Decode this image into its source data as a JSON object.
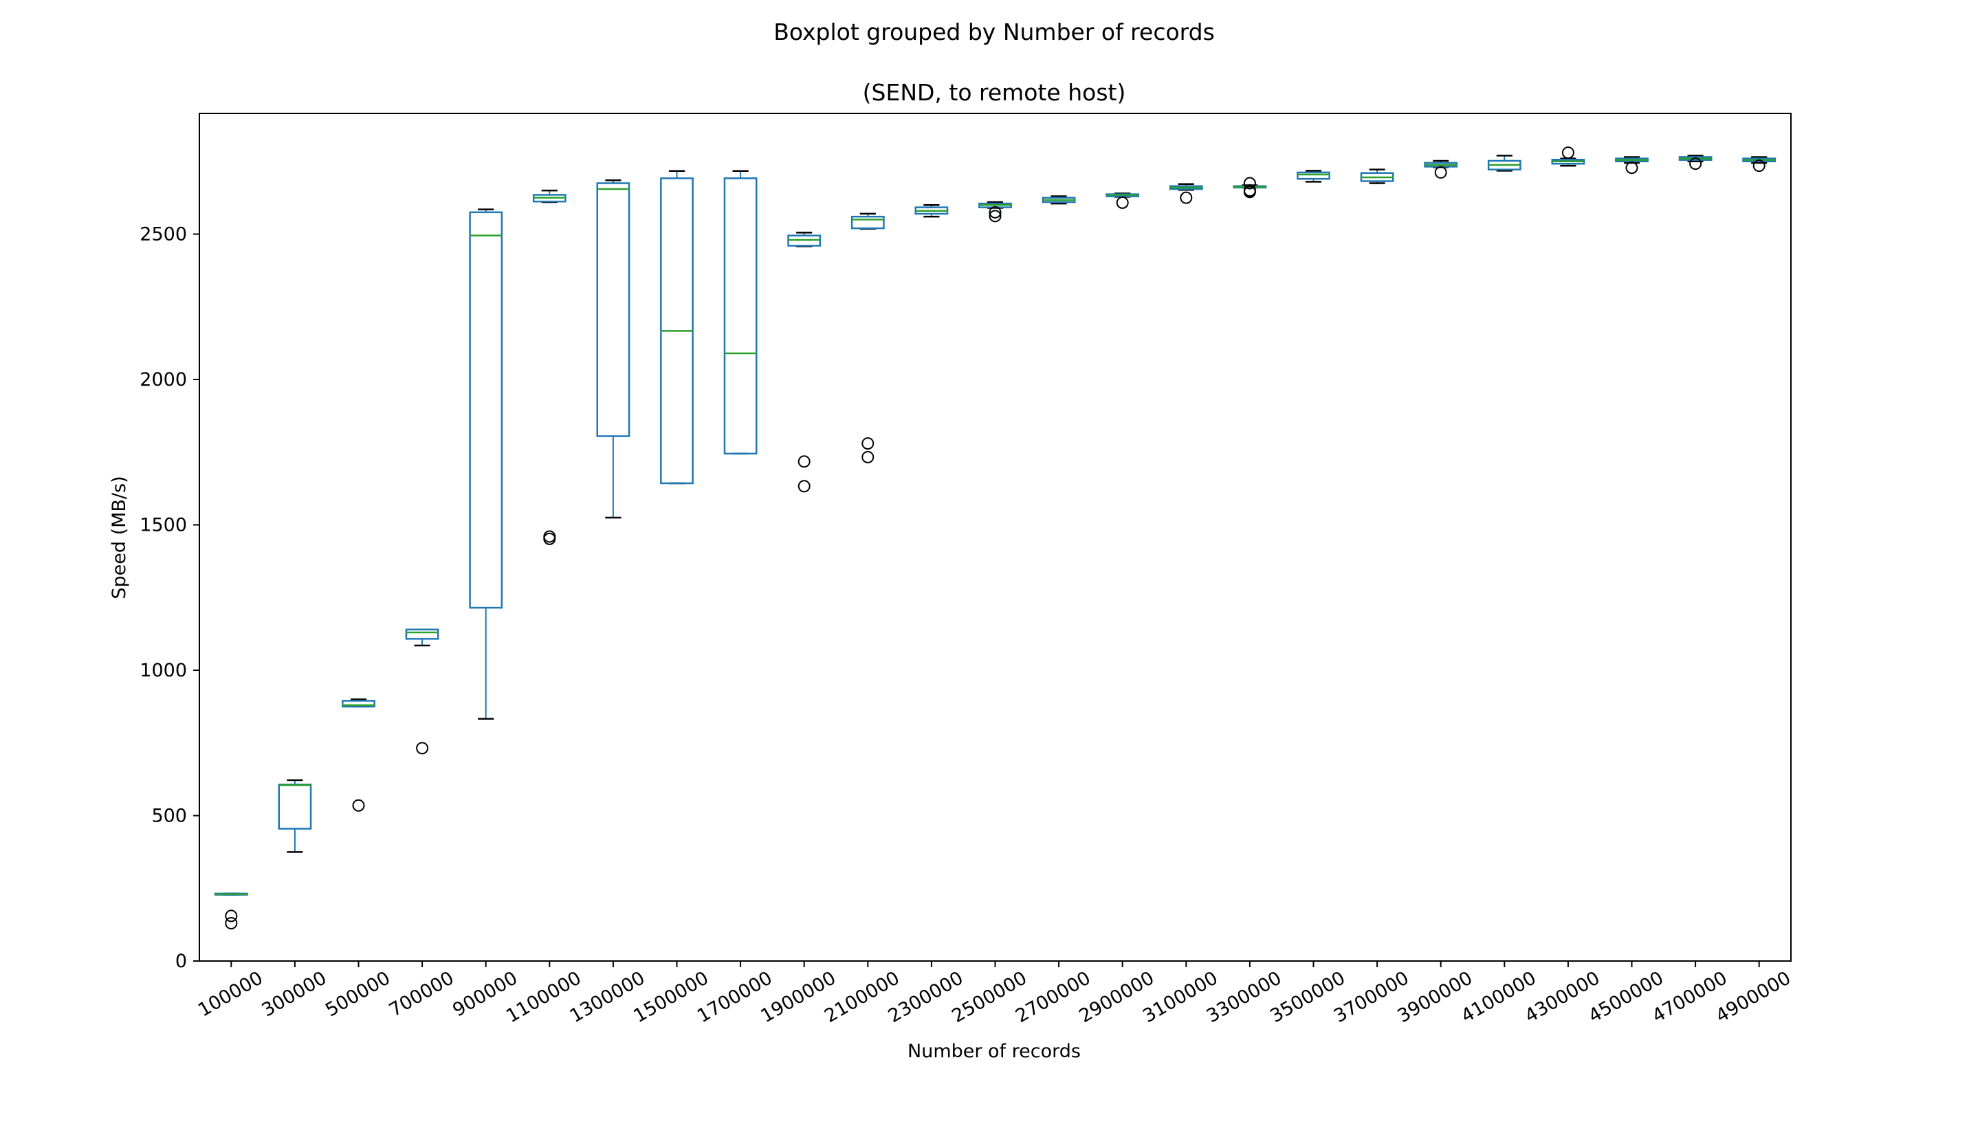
{
  "chart_data": {
    "type": "boxplot",
    "title": "Boxplot grouped by Number of records",
    "subtitle": "(SEND, to remote host)",
    "xlabel": "Number of records",
    "ylabel": "Speed (MB/s)",
    "ylim": [
      0,
      2915
    ],
    "yticks": [
      0,
      500,
      1000,
      1500,
      2000,
      2500
    ],
    "grid": false,
    "colors": {
      "box": "#1f77b4",
      "median": "#2ca02c",
      "whisker_cap": "#000000",
      "flier": "#000000"
    },
    "categories": [
      "100000",
      "300000",
      "500000",
      "700000",
      "900000",
      "1100000",
      "1300000",
      "1500000",
      "1700000",
      "1900000",
      "2100000",
      "2300000",
      "2500000",
      "2700000",
      "2900000",
      "3100000",
      "3300000",
      "3500000",
      "3700000",
      "3900000",
      "4100000",
      "4300000",
      "4500000",
      "4700000",
      "4900000"
    ],
    "boxes": [
      {
        "whislo": 228,
        "q1": 228,
        "med": 230,
        "q3": 232,
        "whishi": 232,
        "fliers": [
          130,
          155
        ]
      },
      {
        "whislo": 375,
        "q1": 455,
        "med": 605,
        "q3": 607,
        "whishi": 622,
        "fliers": []
      },
      {
        "whislo": 875,
        "q1": 875,
        "med": 880,
        "q3": 895,
        "whishi": 900,
        "fliers": [
          535
        ]
      },
      {
        "whislo": 1085,
        "q1": 1108,
        "med": 1130,
        "q3": 1140,
        "whishi": 1140,
        "fliers": [
          732
        ]
      },
      {
        "whislo": 833,
        "q1": 1215,
        "med": 2495,
        "q3": 2575,
        "whishi": 2585,
        "fliers": []
      },
      {
        "whislo": 2610,
        "q1": 2612,
        "med": 2625,
        "q3": 2635,
        "whishi": 2650,
        "fliers": [
          1452,
          1460
        ]
      },
      {
        "whislo": 1525,
        "q1": 1805,
        "med": 2655,
        "q3": 2675,
        "whishi": 2685,
        "fliers": []
      },
      {
        "whislo": 1643,
        "q1": 1643,
        "med": 2167,
        "q3": 2692,
        "whishi": 2717,
        "fliers": []
      },
      {
        "whislo": 1745,
        "q1": 1745,
        "med": 2090,
        "q3": 2692,
        "whishi": 2717,
        "fliers": []
      },
      {
        "whislo": 2458,
        "q1": 2460,
        "med": 2480,
        "q3": 2495,
        "whishi": 2505,
        "fliers": [
          1633,
          1718
        ]
      },
      {
        "whislo": 2518,
        "q1": 2520,
        "med": 2550,
        "q3": 2560,
        "whishi": 2570,
        "fliers": [
          1733,
          1780
        ]
      },
      {
        "whislo": 2560,
        "q1": 2570,
        "med": 2580,
        "q3": 2592,
        "whishi": 2600,
        "fliers": []
      },
      {
        "whislo": 2590,
        "q1": 2592,
        "med": 2600,
        "q3": 2605,
        "whishi": 2610,
        "fliers": [
          2562,
          2575
        ]
      },
      {
        "whislo": 2605,
        "q1": 2610,
        "med": 2617,
        "q3": 2625,
        "whishi": 2630,
        "fliers": []
      },
      {
        "whislo": 2628,
        "q1": 2630,
        "med": 2635,
        "q3": 2637,
        "whishi": 2640,
        "fliers": [
          2608
        ]
      },
      {
        "whislo": 2652,
        "q1": 2655,
        "med": 2660,
        "q3": 2665,
        "whishi": 2672,
        "fliers": [
          2625
        ]
      },
      {
        "whislo": 2660,
        "q1": 2660,
        "med": 2662,
        "q3": 2665,
        "whishi": 2668,
        "fliers": [
          2645,
          2650,
          2675
        ]
      },
      {
        "whislo": 2680,
        "q1": 2690,
        "med": 2705,
        "q3": 2712,
        "whishi": 2718,
        "fliers": []
      },
      {
        "whislo": 2675,
        "q1": 2682,
        "med": 2695,
        "q3": 2710,
        "whishi": 2722,
        "fliers": []
      },
      {
        "whislo": 2730,
        "q1": 2732,
        "med": 2738,
        "q3": 2745,
        "whishi": 2752,
        "fliers": [
          2712
        ]
      },
      {
        "whislo": 2718,
        "q1": 2722,
        "med": 2738,
        "q3": 2752,
        "whishi": 2770,
        "fliers": []
      },
      {
        "whislo": 2735,
        "q1": 2742,
        "med": 2750,
        "q3": 2756,
        "whishi": 2760,
        "fliers": [
          2780
        ]
      },
      {
        "whislo": 2745,
        "q1": 2750,
        "med": 2755,
        "q3": 2760,
        "whishi": 2765,
        "fliers": [
          2728
        ]
      },
      {
        "whislo": 2750,
        "q1": 2755,
        "med": 2760,
        "q3": 2765,
        "whishi": 2770,
        "fliers": [
          2742
        ]
      },
      {
        "whislo": 2745,
        "q1": 2750,
        "med": 2755,
        "q3": 2760,
        "whishi": 2765,
        "fliers": [
          2735
        ]
      }
    ]
  }
}
